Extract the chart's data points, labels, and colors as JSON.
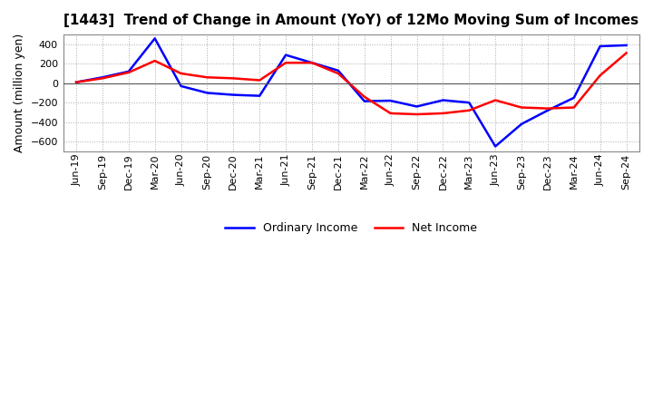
{
  "title": "[1443]  Trend of Change in Amount (YoY) of 12Mo Moving Sum of Incomes",
  "ylabel": "Amount (million yen)",
  "ylim": [
    -700,
    500
  ],
  "yticks": [
    400,
    200,
    0,
    -200,
    -400,
    -600
  ],
  "ordinary_income_color": "#0000FF",
  "net_income_color": "#FF0000",
  "background_color": "#FFFFFF",
  "grid_color": "#AAAAAA",
  "ordinary_income": [
    10,
    60,
    120,
    460,
    -30,
    -100,
    -120,
    -130,
    290,
    210,
    130,
    -185,
    -180,
    -240,
    -175,
    -200,
    -650,
    -420,
    -280,
    -150,
    380,
    390
  ],
  "net_income": [
    10,
    50,
    110,
    230,
    100,
    60,
    50,
    30,
    210,
    210,
    100,
    -140,
    -310,
    -320,
    -310,
    -280,
    -175,
    -250,
    -260,
    -250,
    80,
    310
  ],
  "xtick_labels": [
    "Jun-19",
    "Sep-19",
    "Dec-19",
    "Mar-20",
    "Jun-20",
    "Sep-20",
    "Dec-20",
    "Mar-21",
    "Jun-21",
    "Sep-21",
    "Dec-21",
    "Mar-22",
    "Jun-22",
    "Sep-22",
    "Dec-22",
    "Mar-23",
    "Jun-23",
    "Sep-23",
    "Dec-23",
    "Mar-24",
    "Jun-24",
    "Sep-24"
  ],
  "legend_labels": [
    "Ordinary Income",
    "Net Income"
  ],
  "title_fontsize": 11,
  "axis_fontsize": 9,
  "tick_fontsize": 8
}
